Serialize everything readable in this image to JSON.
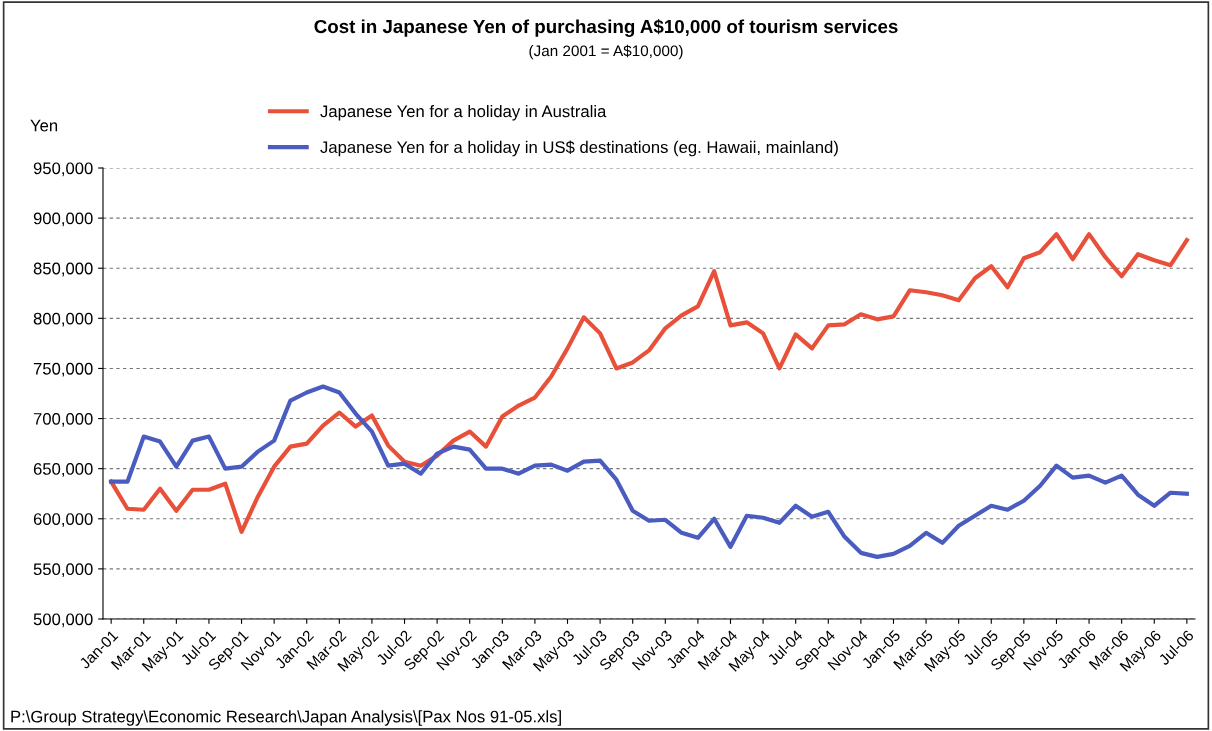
{
  "chart_data": {
    "type": "line",
    "title": "Cost in Japanese Yen of purchasing A$10,000 of tourism services",
    "subtitle": "(Jan 2001 = A$10,000)",
    "ylabel": "Yen",
    "categories": [
      "Jan-01",
      null,
      "Mar-01",
      null,
      "May-01",
      null,
      "Jul-01",
      null,
      "Sep-01",
      null,
      "Nov-01",
      null,
      "Jan-02",
      null,
      "Mar-02",
      null,
      "May-02",
      null,
      "Jul-02",
      null,
      "Sep-02",
      null,
      "Nov-02",
      null,
      "Jan-03",
      null,
      "Mar-03",
      null,
      "May-03",
      null,
      "Jul-03",
      null,
      "Sep-03",
      null,
      "Nov-03",
      null,
      "Jan-04",
      null,
      "Mar-04",
      null,
      "May-04",
      null,
      "Jul-04",
      null,
      "Sep-04",
      null,
      "Nov-04",
      null,
      "Jan-05",
      null,
      "Mar-05",
      null,
      "May-05",
      null,
      "Jul-05",
      null,
      "Sep-05",
      null,
      "Nov-05",
      null,
      "Jan-06",
      null,
      "Mar-06",
      null,
      "May-06",
      null,
      "Jul-06"
    ],
    "series": [
      {
        "name": "Japanese Yen for a holiday in Australia",
        "color": "#e8503a",
        "values": [
          637000,
          610000,
          609000,
          630000,
          608000,
          629000,
          629000,
          635000,
          587000,
          622000,
          652000,
          672000,
          675000,
          693000,
          706000,
          692000,
          703000,
          673000,
          657000,
          653000,
          663000,
          678000,
          687000,
          672000,
          702000,
          713000,
          721000,
          742000,
          770000,
          801000,
          785000,
          750000,
          756000,
          768000,
          790000,
          803000,
          812000,
          847000,
          793000,
          796000,
          785000,
          750000,
          784000,
          770000,
          793000,
          794000,
          804000,
          799000,
          802000,
          828000,
          826000,
          823000,
          818000,
          840000,
          852000,
          831000,
          860000,
          866000,
          884000,
          859000,
          884000,
          861000,
          842000,
          864000,
          858000,
          853000,
          878000
        ]
      },
      {
        "name": "Japanese Yen for a holiday in US$ destinations (eg. Hawaii, mainland)",
        "color": "#4a5cc0",
        "values": [
          637000,
          637000,
          682000,
          677000,
          652000,
          678000,
          682000,
          650000,
          652000,
          667000,
          678000,
          718000,
          726000,
          732000,
          726000,
          705000,
          687000,
          653000,
          655000,
          645000,
          665000,
          672000,
          669000,
          650000,
          650000,
          645000,
          653000,
          654000,
          648000,
          657000,
          658000,
          639000,
          608000,
          598000,
          599000,
          586000,
          581000,
          600000,
          572000,
          603000,
          601000,
          596000,
          613000,
          602000,
          607000,
          582000,
          566000,
          562000,
          565000,
          573000,
          586000,
          576000,
          593000,
          603000,
          613000,
          609000,
          618000,
          633000,
          653000,
          641000,
          643000,
          636000,
          643000,
          624000,
          613000,
          626000,
          625000
        ]
      }
    ],
    "ylim": [
      500000,
      950000
    ],
    "yticks": [
      {
        "value": 500000,
        "label": "500,000"
      },
      {
        "value": 550000,
        "label": "550,000"
      },
      {
        "value": 600000,
        "label": "600,000"
      },
      {
        "value": 650000,
        "label": "650,000"
      },
      {
        "value": 700000,
        "label": "700,000"
      },
      {
        "value": 750000,
        "label": "750,000"
      },
      {
        "value": 800000,
        "label": "800,000"
      },
      {
        "value": 850000,
        "label": "850,000"
      },
      {
        "value": 900000,
        "label": "900,000"
      },
      {
        "value": 950000,
        "label": "950,000"
      }
    ],
    "grid": "y",
    "legend": "top",
    "marker": "none",
    "line_style": "solid",
    "annotations": [
      "P:\\Group Strategy\\Economic Research\\Japan Analysis\\[Pax Nos 91-05.xls]"
    ]
  }
}
